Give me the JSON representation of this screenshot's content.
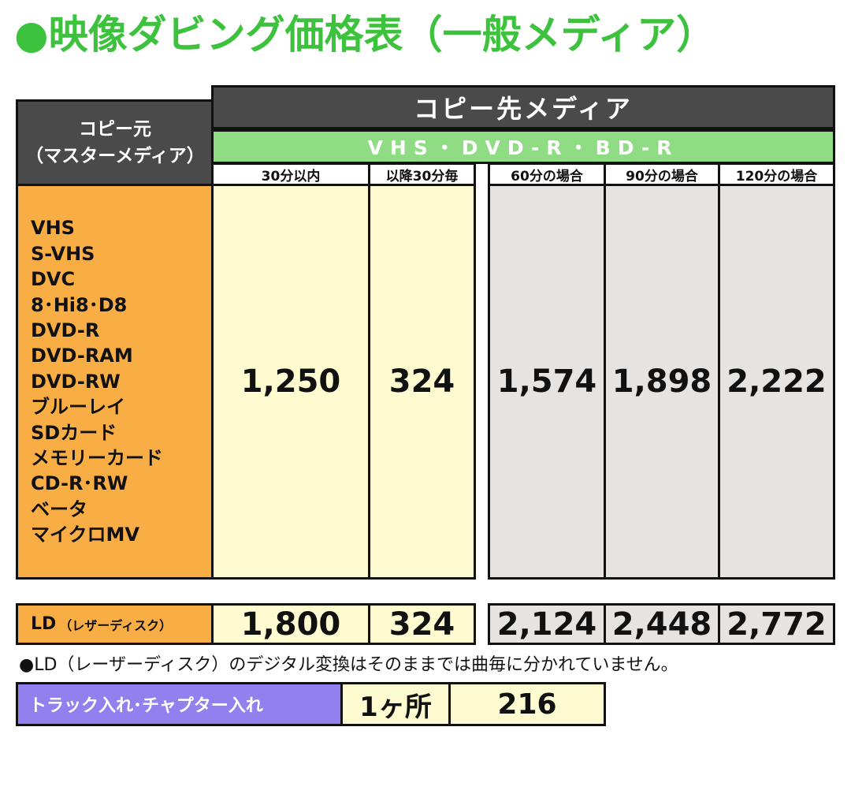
{
  "title": "●映像ダビング価格表（一般メディア）",
  "header": {
    "source_line1": "コピー元",
    "source_line2": "（マスターメディア）",
    "destination": "コピー先メディア",
    "media_types": "VHS・DVD-R・BD-R"
  },
  "columns": [
    "30分以内",
    "以降30分毎",
    "60分の場合",
    "90分の場合",
    "120分の場合"
  ],
  "media_list": [
    "VHS",
    "S-VHS",
    "DVC",
    "8･Hi8･D8",
    "DVD-R",
    "DVD-RAM",
    "DVD-RW",
    "ブルーレイ",
    "SDカード",
    "メモリーカード",
    "CD-R･RW",
    "ベータ",
    "マイクロMV"
  ],
  "general_prices": [
    "1,250",
    "324",
    "1,574",
    "1,898",
    "2,222"
  ],
  "ld_row": {
    "label": "LD",
    "label_note": "（レザーディスク）",
    "prices": [
      "1,800",
      "324",
      "2,124",
      "2,448",
      "2,772"
    ]
  },
  "note": "●LD（レーザーディスク）のデジタル変換はそのままでは曲毎に分かれていません。",
  "track": {
    "label": "トラック入れ･チャプター入れ",
    "count": "1ヶ所",
    "price": "216"
  }
}
